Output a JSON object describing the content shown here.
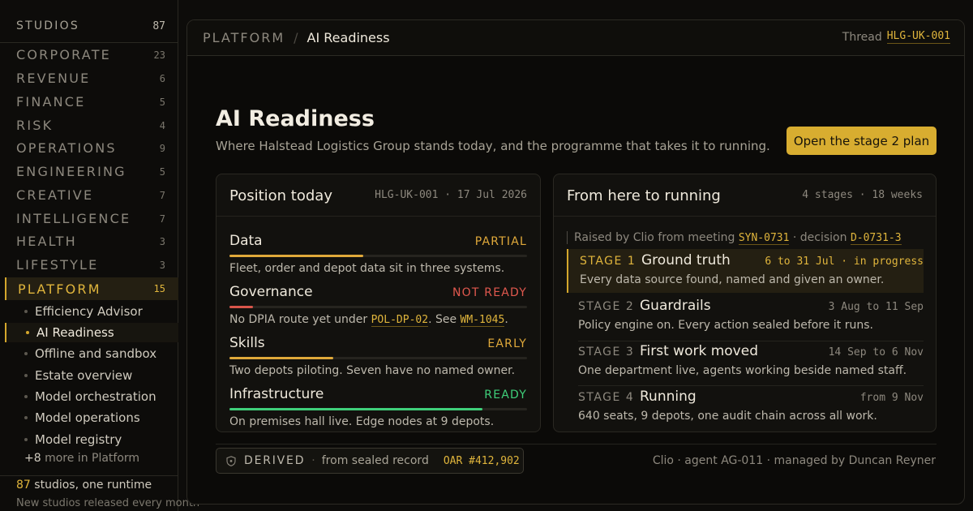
{
  "sidebar": {
    "header": {
      "label": "STUDIOS",
      "count": "87"
    },
    "categories": [
      {
        "label": "CORPORATE",
        "count": "23"
      },
      {
        "label": "REVENUE",
        "count": "6"
      },
      {
        "label": "FINANCE",
        "count": "5"
      },
      {
        "label": "RISK",
        "count": "4"
      },
      {
        "label": "OPERATIONS",
        "count": "9"
      },
      {
        "label": "ENGINEERING",
        "count": "5"
      },
      {
        "label": "CREATIVE",
        "count": "7"
      },
      {
        "label": "INTELLIGENCE",
        "count": "7"
      },
      {
        "label": "HEALTH",
        "count": "3"
      },
      {
        "label": "LIFESTYLE",
        "count": "3"
      },
      {
        "label": "PLATFORM",
        "count": "15"
      }
    ],
    "platform_items": [
      "Efficiency Advisor",
      "AI Readiness",
      "Offline and sandbox",
      "Estate overview",
      "Model orchestration",
      "Model operations",
      "Model registry"
    ],
    "more": {
      "count": "+8",
      "text": "more in Platform"
    },
    "footer": {
      "count": "87",
      "line1": "studios, one runtime",
      "line2": "New studios released every month"
    }
  },
  "topbar": {
    "breadcrumb_root": "PLATFORM",
    "breadcrumb_sep": "/",
    "breadcrumb_current": "AI Readiness",
    "thread_label": "Thread",
    "thread_code": "HLG-UK-001"
  },
  "page": {
    "title": "AI Readiness",
    "subtitle": "Where Halstead Logistics Group stands today, and the programme that takes it to running.",
    "primary_button": "Open the stage 2 plan"
  },
  "position_card": {
    "title": "Position today",
    "meta": "HLG-UK-001 · 17 Jul 2026",
    "pillars": [
      {
        "name": "Data",
        "status": "PARTIAL",
        "status_color": "#e0a93a",
        "bar_color": "#e0a93a",
        "level": 0.45,
        "desc": "Fleet, order and depot data sit in three systems."
      },
      {
        "name": "Governance",
        "status": "NOT READY",
        "status_color": "#e0584e",
        "bar_color": "#d9554b",
        "level": 0.08,
        "desc_pre": "No DPIA route yet under ",
        "desc_code1": "POL-DP-02",
        "desc_mid": ". See ",
        "desc_code2": "WM-1045",
        "desc_post": "."
      },
      {
        "name": "Skills",
        "status": "EARLY",
        "status_color": "#e0a93a",
        "bar_color": "#e0a93a",
        "level": 0.35,
        "desc": "Two depots piloting. Seven have no named owner."
      },
      {
        "name": "Infrastructure",
        "status": "READY",
        "status_color": "#3fcf7a",
        "bar_color": "#3fcf7a",
        "level": 0.85,
        "desc": "On premises hall live. Edge nodes at 9 depots."
      }
    ]
  },
  "roadmap_card": {
    "title": "From here to running",
    "meta": "4 stages · 18 weeks",
    "raised_pre": "Raised by Clio from meeting",
    "raised_meeting": "SYN-0731",
    "raised_mid": "· decision",
    "raised_decision": "D-0731-3",
    "stages": [
      {
        "label": "STAGE 1",
        "title": "Ground truth",
        "dates": "6 to 31 Jul · in progress",
        "desc": "Every data source found, named and given an owner."
      },
      {
        "label": "STAGE 2",
        "title": "Guardrails",
        "dates": "3 Aug to 11 Sep",
        "desc": "Policy engine on. Every action sealed before it runs."
      },
      {
        "label": "STAGE 3",
        "title": "First work moved",
        "dates": "14 Sep to 6 Nov",
        "desc": "One department live, agents working beside named staff."
      },
      {
        "label": "STAGE 4",
        "title": "Running",
        "dates": "from 9 Nov",
        "desc": "640 seats, 9 depots, one audit chain across all work."
      }
    ]
  },
  "footer": {
    "derived_tag": "DERIVED",
    "derived_sep": "·",
    "derived_text": "from sealed record",
    "derived_code": "OAR #412,902",
    "agent_text": "Clio · agent AG-011 · managed by Duncan Reyner"
  },
  "colors": {
    "accent": "#d8ad30",
    "ready": "#3fcf7a",
    "not_ready": "#d9554b",
    "partial": "#e0a93a"
  }
}
